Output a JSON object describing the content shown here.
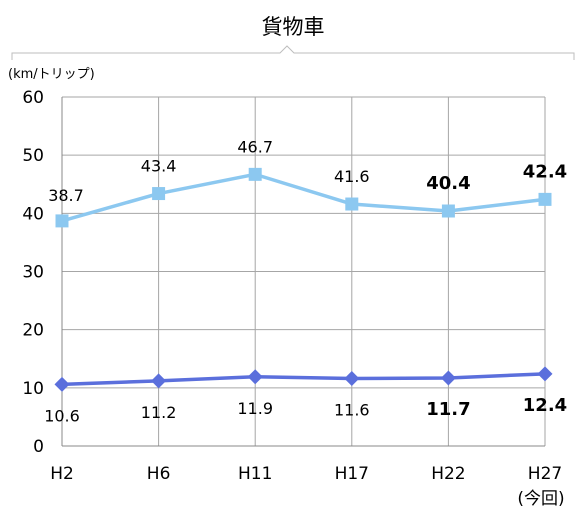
{
  "chart_data": {
    "type": "line",
    "title": "貨物車",
    "ylabel": "(km/トリップ)",
    "xlabel": "",
    "categories": [
      "H2",
      "H6",
      "H11",
      "H17",
      "H22",
      "H27"
    ],
    "category_sublabel": {
      "H27": "(今回)"
    },
    "ylim": [
      0,
      60
    ],
    "yticks": [
      0,
      10,
      20,
      30,
      40,
      50,
      60
    ],
    "grid": true,
    "series": [
      {
        "values": [
          38.7,
          43.4,
          46.7,
          41.6,
          40.4,
          42.4
        ],
        "labels": [
          "38.7",
          "43.4",
          "46.7",
          "41.6",
          "40.4",
          "42.4"
        ],
        "marker": "square",
        "color": "#8cc8f0",
        "bold_labels": [
          false,
          false,
          false,
          false,
          true,
          true
        ]
      },
      {
        "values": [
          10.6,
          11.2,
          11.9,
          11.6,
          11.7,
          12.4
        ],
        "labels": [
          "10.6",
          "11.2",
          "11.9",
          "11.6",
          "11.7",
          "12.4"
        ],
        "marker": "diamond",
        "color": "#5b6fdc",
        "bold_labels": [
          false,
          false,
          false,
          false,
          true,
          true
        ]
      }
    ]
  }
}
